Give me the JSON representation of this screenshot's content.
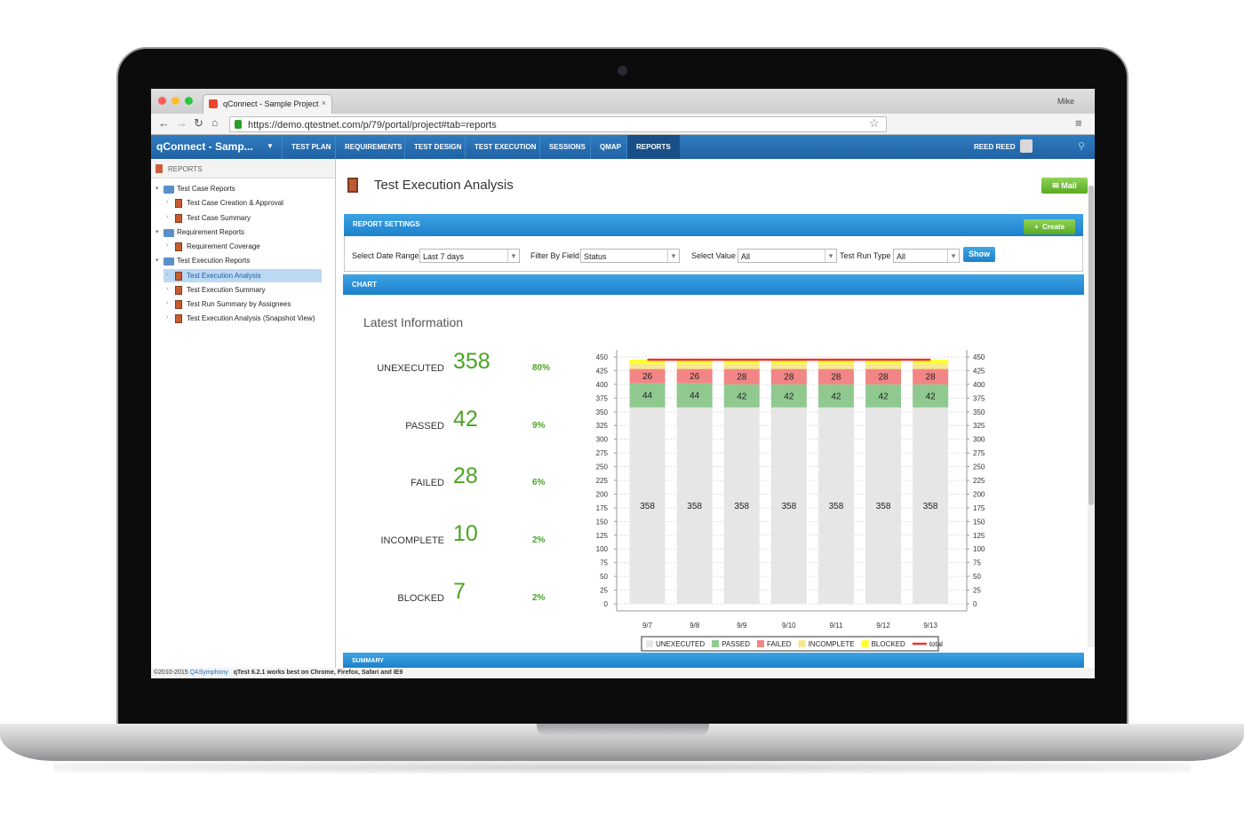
{
  "browser": {
    "tab_title": "qConnect - Sample Project",
    "url": "https://demo.qtestnet.com/p/79/portal/project#tab=reports",
    "user": "Mike"
  },
  "nav": {
    "project": "qConnect - Samp...",
    "menu": [
      "TEST PLAN",
      "REQUIREMENTS",
      "TEST DESIGN",
      "TEST EXECUTION",
      "SESSIONS",
      "QMAP",
      "REPORTS"
    ],
    "user": "REED REED"
  },
  "sidebar": {
    "header": "REPORTS",
    "groups": [
      {
        "title": "Test Case Reports",
        "reports": [
          "Test Case Creation & Approval",
          "Test Case Summary"
        ]
      },
      {
        "title": "Requirement Reports",
        "reports": [
          "Requirement Coverage"
        ]
      },
      {
        "title": "Test Execution Reports",
        "reports": [
          "Test Execution Analysis",
          "Test Execution Summary",
          "Test Run Summary by Assignees",
          "Test Execution Analysis (Snapshot View)"
        ]
      }
    ]
  },
  "page": {
    "title": "Test Execution Analysis",
    "mail": "Mail"
  },
  "report_settings": {
    "header": "REPORT SETTINGS",
    "create": "Create",
    "show": "Show",
    "fields": [
      {
        "label": "Select Date Range",
        "value": "Last 7 days"
      },
      {
        "label": "Filter By Field",
        "value": "Status"
      },
      {
        "label": "Select Value",
        "value": "All"
      },
      {
        "label": "Test Run Type",
        "value": "All"
      }
    ]
  },
  "chart_section": {
    "header": "CHART",
    "subtitle": "Latest Information"
  },
  "stats": [
    {
      "label": "UNEXECUTED",
      "value": 358,
      "percent": "80%"
    },
    {
      "label": "PASSED",
      "value": 42,
      "percent": "9%"
    },
    {
      "label": "FAILED",
      "value": 28,
      "percent": "6%"
    },
    {
      "label": "INCOMPLETE",
      "value": 10,
      "percent": "2%"
    },
    {
      "label": "BLOCKED",
      "value": 7,
      "percent": "2%"
    }
  ],
  "summary": {
    "header": "SUMMARY"
  },
  "footer": {
    "copyright": "©2010-2015",
    "company": "QASymphony",
    "note": "qTest 6.2.1 works best on Chrome, Firefox, Safari and IE9"
  },
  "chart_data": {
    "type": "bar",
    "stacked": true,
    "categories": [
      "9/7",
      "9/8",
      "9/9",
      "9/10",
      "9/11",
      "9/12",
      "9/13"
    ],
    "series": [
      {
        "name": "UNEXECUTED",
        "color": "#e6e6e6",
        "labels": true,
        "values": [
          358,
          358,
          358,
          358,
          358,
          358,
          358
        ]
      },
      {
        "name": "PASSED",
        "color": "#8fc98f",
        "labels": true,
        "values": [
          44,
          44,
          42,
          42,
          42,
          42,
          42
        ]
      },
      {
        "name": "FAILED",
        "color": "#f28585",
        "labels": true,
        "values": [
          26,
          26,
          28,
          28,
          28,
          28,
          28
        ]
      },
      {
        "name": "INCOMPLETE",
        "color": "#f4e88e",
        "values": [
          10,
          10,
          10,
          10,
          10,
          10,
          10
        ]
      },
      {
        "name": "BLOCKED",
        "color": "#ffff2e",
        "values": [
          7,
          7,
          7,
          7,
          7,
          7,
          7
        ]
      },
      {
        "name": "total",
        "color": "#ee3333",
        "type": "line",
        "values": [
          445,
          445,
          445,
          445,
          445,
          445,
          445
        ]
      }
    ],
    "ylim": [
      0,
      450
    ],
    "yticks": [
      0,
      25,
      50,
      75,
      100,
      125,
      150,
      175,
      200,
      225,
      250,
      275,
      300,
      325,
      350,
      375,
      400,
      425,
      450
    ],
    "y2lim": [
      0,
      450
    ],
    "y2ticks": [
      0,
      25,
      50,
      75,
      100,
      125,
      150,
      175,
      200,
      225,
      250,
      275,
      300,
      325,
      350,
      375,
      400,
      425,
      450
    ],
    "grid": true,
    "legend": "bottom"
  }
}
